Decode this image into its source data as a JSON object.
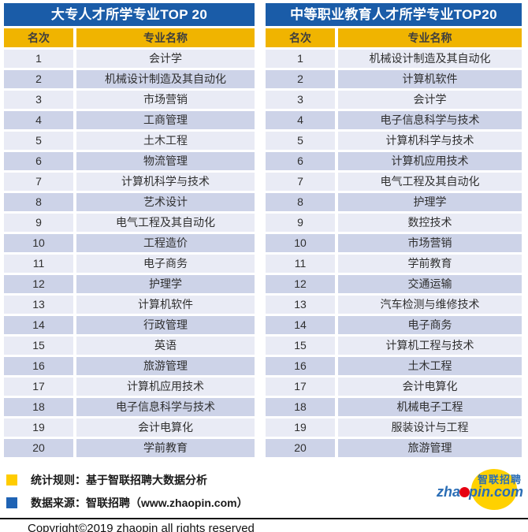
{
  "chart_data": [
    {
      "type": "table",
      "title": "大专人才所学专业TOP 20",
      "columns": [
        "名次",
        "专业名称"
      ],
      "rows": [
        [
          1,
          "会计学"
        ],
        [
          2,
          "机械设计制造及其自动化"
        ],
        [
          3,
          "市场营销"
        ],
        [
          4,
          "工商管理"
        ],
        [
          5,
          "土木工程"
        ],
        [
          6,
          "物流管理"
        ],
        [
          7,
          "计算机科学与技术"
        ],
        [
          8,
          "艺术设计"
        ],
        [
          9,
          "电气工程及其自动化"
        ],
        [
          10,
          "工程造价"
        ],
        [
          11,
          "电子商务"
        ],
        [
          12,
          "护理学"
        ],
        [
          13,
          "计算机软件"
        ],
        [
          14,
          "行政管理"
        ],
        [
          15,
          "英语"
        ],
        [
          16,
          "旅游管理"
        ],
        [
          17,
          "计算机应用技术"
        ],
        [
          18,
          "电子信息科学与技术"
        ],
        [
          19,
          "会计电算化"
        ],
        [
          20,
          "学前教育"
        ]
      ]
    },
    {
      "type": "table",
      "title": "中等职业教育人才所学专业TOP20",
      "columns": [
        "名次",
        "专业名称"
      ],
      "rows": [
        [
          1,
          "机械设计制造及其自动化"
        ],
        [
          2,
          "计算机软件"
        ],
        [
          3,
          "会计学"
        ],
        [
          4,
          "电子信息科学与技术"
        ],
        [
          5,
          "计算机科学与技术"
        ],
        [
          6,
          "计算机应用技术"
        ],
        [
          7,
          "电气工程及其自动化"
        ],
        [
          8,
          "护理学"
        ],
        [
          9,
          "数控技术"
        ],
        [
          10,
          "市场营销"
        ],
        [
          11,
          "学前教育"
        ],
        [
          12,
          "交通运输"
        ],
        [
          13,
          "汽车检测与维修技术"
        ],
        [
          14,
          "电子商务"
        ],
        [
          15,
          "计算机工程与技术"
        ],
        [
          16,
          "土木工程"
        ],
        [
          17,
          "会计电算化"
        ],
        [
          18,
          "机械电子工程"
        ],
        [
          19,
          "服装设计与工程"
        ],
        [
          20,
          "旅游管理"
        ]
      ]
    }
  ],
  "legend": [
    {
      "swatch_color": "#FFCC00",
      "label": "统计规则：基于智联招聘大数据分析"
    },
    {
      "swatch_color": "#1F63B4",
      "label": "数据来源：智联招聘（www.zhaopin.com）"
    }
  ],
  "logo": {
    "latin_prefix": "zha",
    "latin_suffix": "pin.com",
    "chinese": "智联招聘",
    "dot_color": "#E60012",
    "ellipse_color": "#FFD100",
    "text_color": "#2A6DB5"
  },
  "copyright": "Copyright©2019 zhaopin all rights reserved",
  "colors": {
    "title_bar_blue": "#1A5CA8",
    "header_gold": "#F0B400",
    "row_light": "#E9EBF5",
    "row_dark": "#CDD3E8",
    "header_text": "#3E3E3E"
  }
}
